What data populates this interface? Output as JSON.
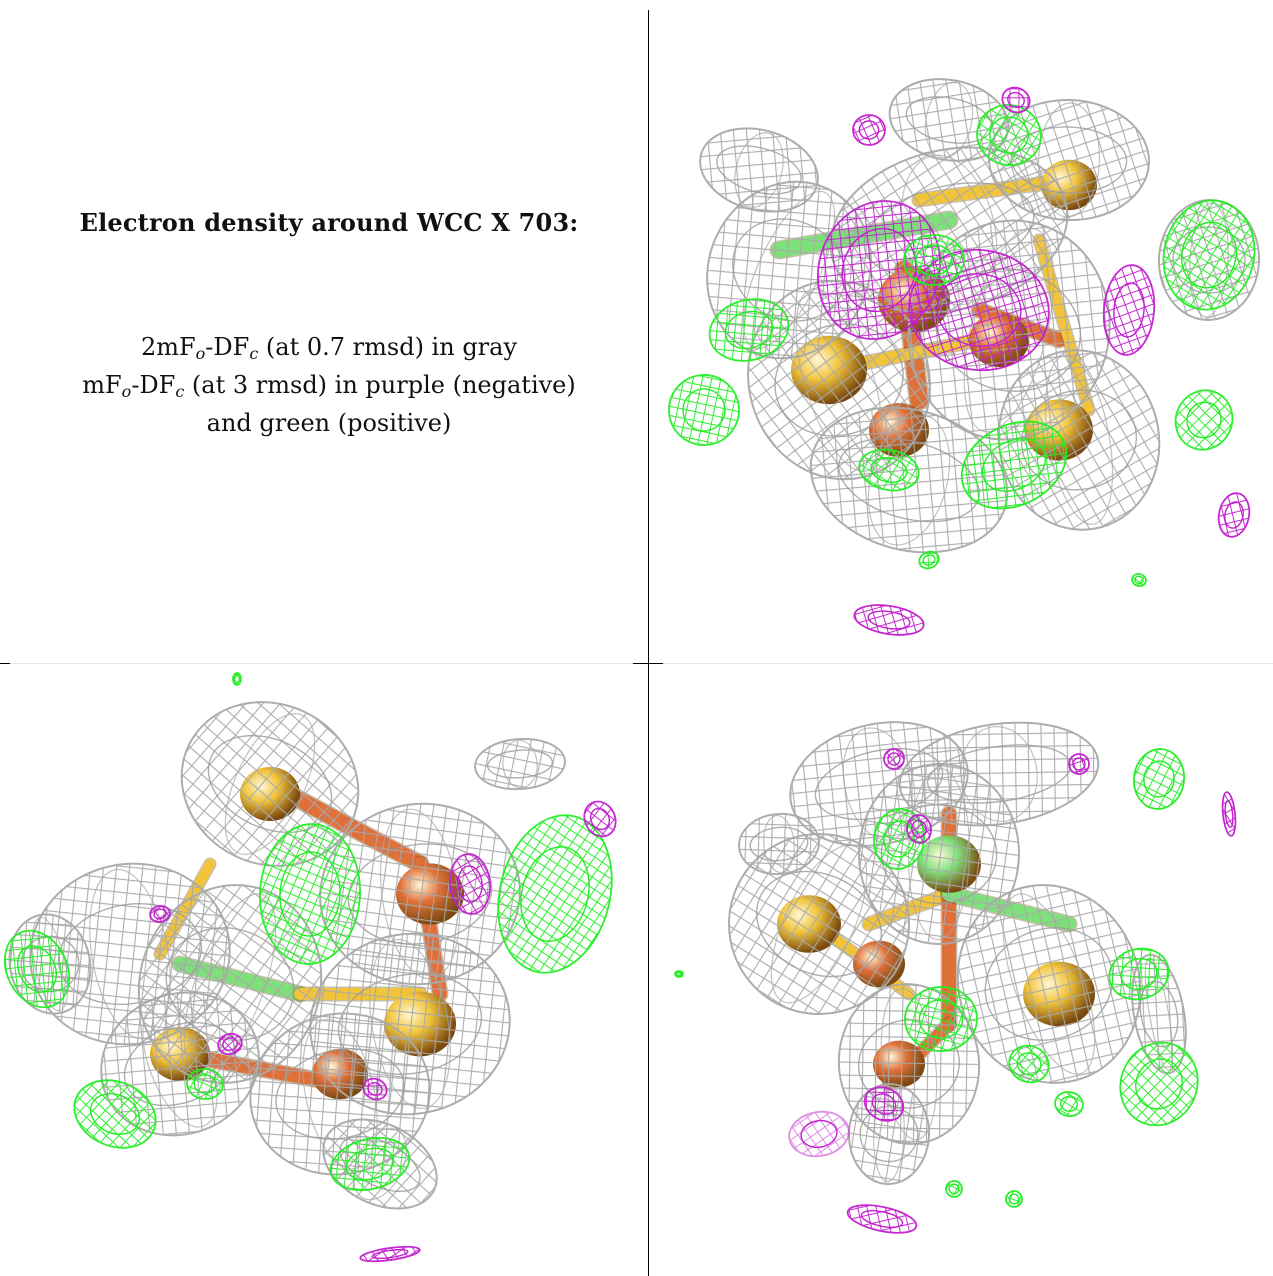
{
  "caption": {
    "title": "Electron density around WCC X 703:",
    "line1": {
      "prefix": "2mF",
      "sub1": "o",
      "mid": "-DF",
      "sub2": "c",
      "suffix": " (at 0.7 rmsd) in gray"
    },
    "line2": {
      "prefix": "mF",
      "sub1": "o",
      "mid": "-DF",
      "sub2": "c",
      "suffix": " (at 3 rmsd) in purple (negative)"
    },
    "line3": "and green (positive)"
  },
  "colors": {
    "mesh_gray": "#a9a9a9",
    "mesh_purple": "#c21fcf",
    "mesh_green": "#22ee22",
    "iron_orange": "#e0703a",
    "sulfur_yellow": "#f2c43a",
    "chloride_green": "#7ee07a"
  },
  "panels": [
    "caption-panel",
    "density-view-1",
    "density-view-2",
    "density-view-3"
  ]
}
